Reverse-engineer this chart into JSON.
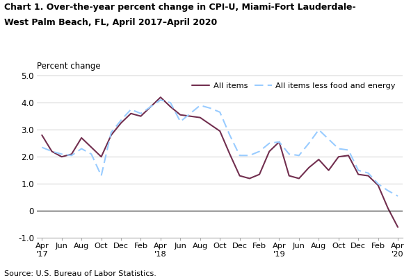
{
  "title_line1": "Chart 1. Over-the-year percent change in CPI-U, Miami-Fort Lauderdale-",
  "title_line2": "West Palm Beach, FL, April 2017–April 2020",
  "ylabel": "Percent change",
  "source": "Source: U.S. Bureau of Labor Statistics.",
  "ylim": [
    -1.0,
    5.0
  ],
  "yticks": [
    -1.0,
    0.0,
    1.0,
    2.0,
    3.0,
    4.0,
    5.0
  ],
  "ytick_labels": [
    "-1.0",
    "0",
    "1.0",
    "2.0",
    "3.0",
    "4.0",
    "5.0"
  ],
  "all_items_monthly": [
    2.8,
    2.2,
    2.0,
    2.1,
    2.7,
    2.35,
    2.0,
    2.8,
    3.25,
    3.6,
    3.5,
    3.85,
    4.2,
    3.85,
    3.55,
    3.5,
    3.45,
    3.2,
    2.95,
    2.1,
    1.3,
    1.2,
    1.35,
    2.2,
    2.55,
    1.3,
    1.2,
    1.6,
    1.9,
    1.5,
    2.0,
    2.05,
    1.35,
    1.3,
    0.95,
    0.1,
    -0.6
  ],
  "all_less_monthly": [
    2.35,
    2.2,
    2.1,
    2.05,
    2.3,
    2.1,
    1.3,
    2.9,
    3.35,
    3.75,
    3.6,
    3.85,
    4.1,
    4.0,
    3.3,
    3.6,
    3.9,
    3.8,
    3.65,
    2.8,
    2.05,
    2.05,
    2.2,
    2.5,
    2.55,
    2.1,
    2.05,
    2.5,
    3.0,
    2.65,
    2.3,
    2.25,
    1.5,
    1.4,
    1.0,
    0.75,
    0.55
  ],
  "all_items_color": "#722F4F",
  "all_items_less_color": "#99CCFF",
  "background_color": "#ffffff",
  "grid_color": "#cccccc",
  "xtick_positions": [
    0,
    2,
    4,
    6,
    8,
    10,
    12,
    14,
    16,
    18,
    20,
    22,
    24,
    26,
    28,
    30,
    32,
    34,
    36
  ],
  "xtick_labels": [
    "Apr\n'17",
    "Jun",
    "Aug",
    "Oct",
    "Dec",
    "Feb",
    "Apr\n'18",
    "Jun",
    "Aug",
    "Oct",
    "Dec",
    "Feb",
    "Apr\n'19",
    "Jun",
    "Aug",
    "Oct",
    "Dec",
    "Feb",
    "Apr\n'20"
  ]
}
